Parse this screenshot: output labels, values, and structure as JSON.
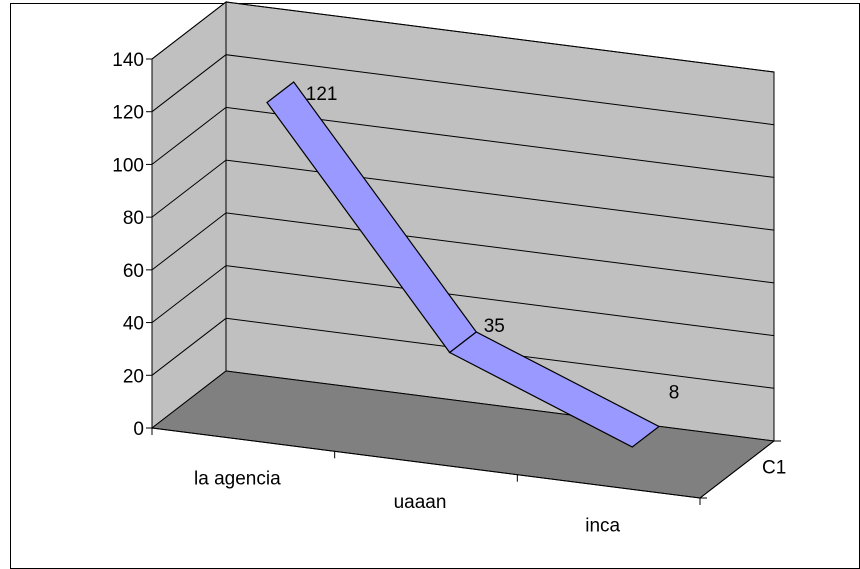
{
  "chart_data": {
    "type": "line",
    "style": "3d-ribbon",
    "categories": [
      "la agencia",
      "uaaan",
      "inca"
    ],
    "series": [
      {
        "name": "C1",
        "values": [
          121,
          35,
          8
        ],
        "color": "#9999ff"
      }
    ],
    "data_labels": [
      "121",
      "35",
      "8"
    ],
    "y_ticks": [
      "0",
      "20",
      "40",
      "60",
      "80",
      "100",
      "120",
      "140"
    ],
    "ylim": [
      0,
      140
    ],
    "grid": true,
    "legend": "none",
    "colors": {
      "wall": "#c0c0c0",
      "floor": "#808080",
      "ribbon": "#9999ff",
      "ribbon_outline": "#000000",
      "gridline": "#000000",
      "border": "#000000"
    }
  }
}
